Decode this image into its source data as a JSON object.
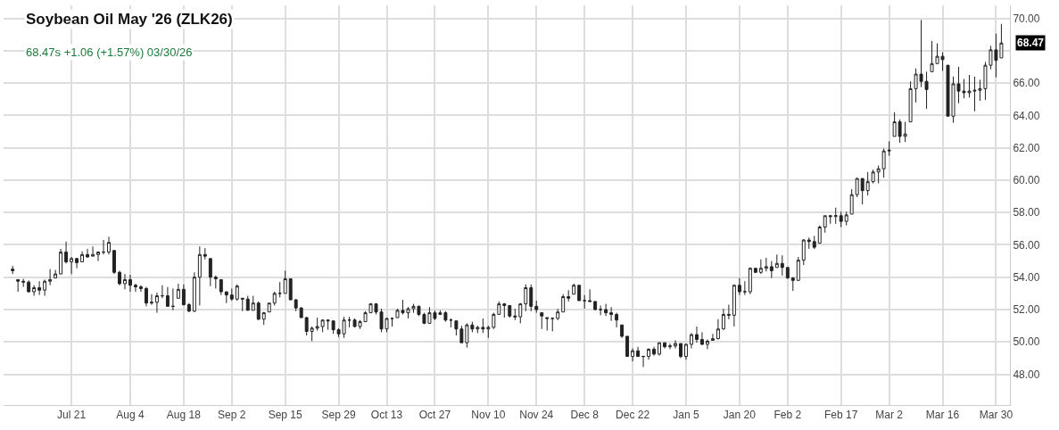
{
  "chart_data": {
    "type": "candlestick",
    "title": "Soybean Oil May '26 (ZLK26)",
    "subtitle": "68.47s +1.06 (+1.57%) 03/30/26",
    "categories": [
      null,
      null,
      null,
      null,
      null,
      null,
      null,
      null,
      null,
      null,
      null,
      "Jul 21",
      null,
      null,
      null,
      null,
      null,
      null,
      null,
      null,
      null,
      null,
      "Aug 4",
      null,
      null,
      null,
      null,
      null,
      null,
      null,
      null,
      null,
      "Aug 18",
      null,
      null,
      null,
      null,
      null,
      null,
      null,
      null,
      "Sep 2",
      null,
      null,
      null,
      null,
      null,
      null,
      null,
      null,
      null,
      "Sep 15",
      null,
      null,
      null,
      null,
      null,
      null,
      null,
      null,
      null,
      "Sep 29",
      null,
      null,
      null,
      null,
      null,
      null,
      null,
      null,
      "Oct 13",
      null,
      null,
      null,
      null,
      null,
      null,
      null,
      null,
      "Oct 27",
      null,
      null,
      null,
      null,
      null,
      null,
      null,
      null,
      null,
      "Nov 10",
      null,
      null,
      null,
      null,
      null,
      null,
      null,
      null,
      "Nov 24",
      null,
      null,
      null,
      null,
      null,
      null,
      null,
      null,
      "Dec 8",
      null,
      null,
      null,
      null,
      null,
      null,
      null,
      null,
      "Dec 22",
      null,
      null,
      null,
      null,
      null,
      null,
      null,
      null,
      null,
      "Jan 5",
      null,
      null,
      null,
      null,
      null,
      null,
      null,
      null,
      null,
      "Jan 20",
      null,
      null,
      null,
      null,
      null,
      null,
      null,
      null,
      "Feb 2",
      null,
      null,
      null,
      null,
      null,
      null,
      null,
      null,
      null,
      "Feb 17",
      null,
      null,
      null,
      null,
      null,
      null,
      null,
      null,
      "Mar 2",
      null,
      null,
      null,
      null,
      null,
      null,
      null,
      null,
      null,
      "Mar 16",
      null,
      null,
      null,
      null,
      null,
      null,
      null,
      null,
      null,
      "Mar 30",
      null
    ],
    "ohlc": [
      [
        54.5,
        54.7,
        54.2,
        54.4
      ],
      [
        53.85,
        53.85,
        53.1,
        53.75
      ],
      [
        53.75,
        53.9,
        53.4,
        53.7
      ],
      [
        53.7,
        53.8,
        53.05,
        53.1
      ],
      [
        53.1,
        53.5,
        52.85,
        53.35
      ],
      [
        53.35,
        53.75,
        52.9,
        53.2
      ],
      [
        53.2,
        53.85,
        52.85,
        53.75
      ],
      [
        53.75,
        54.5,
        53.5,
        53.85
      ],
      [
        53.95,
        54.45,
        53.95,
        54.2
      ],
      [
        54.2,
        55.75,
        54.2,
        55.55
      ],
      [
        55.55,
        56.2,
        54.85,
        54.95
      ],
      [
        54.95,
        55.25,
        54.2,
        55.15
      ],
      [
        55.15,
        55.2,
        54.55,
        54.9
      ],
      [
        54.95,
        55.6,
        54.95,
        55.4
      ],
      [
        55.4,
        55.75,
        55.2,
        55.25
      ],
      [
        55.3,
        55.9,
        55.3,
        55.4
      ],
      [
        55.4,
        55.6,
        55.0,
        55.55
      ],
      [
        55.55,
        56.3,
        55.4,
        55.55
      ],
      [
        55.55,
        56.5,
        55.4,
        56.15
      ],
      [
        55.65,
        55.65,
        54.2,
        54.3
      ],
      [
        54.3,
        54.4,
        53.5,
        53.6
      ],
      [
        53.6,
        54.2,
        53.25,
        53.85
      ],
      [
        53.85,
        54.15,
        53.1,
        53.5
      ],
      [
        53.5,
        53.6,
        53.1,
        53.4
      ],
      [
        53.4,
        53.5,
        53.1,
        53.3
      ],
      [
        53.3,
        53.4,
        52.2,
        52.4
      ],
      [
        52.4,
        52.95,
        52.3,
        52.45
      ],
      [
        52.45,
        53.05,
        51.8,
        52.85
      ],
      [
        52.85,
        53.5,
        52.7,
        52.85
      ],
      [
        52.85,
        53.4,
        52.2,
        52.2
      ],
      [
        52.2,
        53.3,
        51.95,
        52.2
      ],
      [
        52.7,
        53.6,
        52.7,
        53.25
      ],
      [
        53.25,
        53.55,
        52.25,
        52.3
      ],
      [
        52.3,
        52.4,
        51.85,
        51.9
      ],
      [
        51.9,
        54.3,
        51.85,
        54.0
      ],
      [
        54.0,
        55.9,
        52.25,
        55.4
      ],
      [
        55.4,
        55.8,
        55.1,
        55.3
      ],
      [
        55.15,
        55.15,
        53.45,
        54.0
      ],
      [
        54.0,
        54.1,
        53.3,
        53.9
      ],
      [
        53.85,
        53.85,
        52.9,
        53.1
      ],
      [
        53.1,
        53.1,
        52.4,
        52.9
      ],
      [
        52.9,
        53.3,
        52.55,
        52.65
      ],
      [
        52.65,
        53.55,
        52.55,
        53.45
      ],
      [
        52.7,
        52.7,
        51.9,
        52.65
      ],
      [
        52.65,
        52.85,
        51.95,
        51.95
      ],
      [
        51.95,
        52.85,
        51.95,
        52.4
      ],
      [
        52.4,
        52.5,
        51.35,
        51.4
      ],
      [
        51.4,
        51.85,
        51.05,
        51.8
      ],
      [
        51.85,
        52.4,
        51.85,
        52.4
      ],
      [
        52.4,
        53.1,
        52.25,
        53.0
      ],
      [
        53.0,
        53.7,
        52.75,
        53.0
      ],
      [
        53.0,
        54.4,
        53.0,
        53.9
      ],
      [
        53.9,
        53.9,
        52.6,
        52.6
      ],
      [
        52.6,
        52.65,
        51.9,
        52.1
      ],
      [
        52.1,
        52.15,
        51.5,
        51.5
      ],
      [
        51.5,
        51.55,
        50.4,
        50.65
      ],
      [
        50.65,
        50.95,
        50.05,
        50.85
      ],
      [
        50.85,
        51.5,
        50.7,
        50.95
      ],
      [
        50.95,
        51.4,
        50.6,
        51.35
      ],
      [
        51.35,
        51.4,
        50.75,
        51.3
      ],
      [
        51.3,
        51.3,
        50.5,
        50.75
      ],
      [
        50.75,
        50.85,
        50.3,
        50.5
      ],
      [
        50.5,
        51.55,
        50.25,
        51.35
      ],
      [
        51.35,
        51.55,
        50.9,
        51.35
      ],
      [
        51.35,
        51.45,
        50.9,
        50.95
      ],
      [
        50.95,
        51.35,
        50.8,
        51.25
      ],
      [
        51.25,
        51.9,
        51.25,
        51.8
      ],
      [
        51.8,
        52.4,
        51.8,
        52.35
      ],
      [
        52.35,
        52.4,
        51.7,
        51.85
      ],
      [
        51.85,
        52.05,
        50.6,
        50.8
      ],
      [
        50.8,
        51.5,
        50.6,
        51.45
      ],
      [
        51.45,
        51.5,
        50.95,
        51.45
      ],
      [
        51.5,
        52.05,
        51.5,
        51.95
      ],
      [
        51.95,
        52.6,
        51.7,
        51.8
      ],
      [
        51.8,
        52.15,
        51.45,
        52.05
      ],
      [
        52.05,
        52.35,
        51.8,
        52.2
      ],
      [
        52.2,
        52.25,
        51.6,
        51.7
      ],
      [
        51.7,
        51.8,
        51.1,
        51.15
      ],
      [
        51.15,
        52.15,
        51.15,
        51.8
      ],
      [
        51.8,
        51.95,
        51.35,
        51.45
      ],
      [
        51.7,
        51.95,
        51.7,
        51.8
      ],
      [
        51.8,
        51.9,
        51.25,
        51.35
      ],
      [
        51.35,
        51.45,
        50.9,
        51.35
      ],
      [
        51.3,
        51.3,
        50.4,
        50.8
      ],
      [
        50.8,
        51.0,
        49.95,
        49.95
      ],
      [
        49.95,
        51.15,
        49.65,
        51.05
      ],
      [
        51.05,
        51.25,
        50.6,
        50.8
      ],
      [
        50.8,
        51.0,
        50.55,
        50.9
      ],
      [
        50.9,
        51.45,
        50.55,
        50.8
      ],
      [
        50.8,
        51.0,
        50.25,
        50.9
      ],
      [
        50.9,
        51.8,
        50.8,
        51.7
      ],
      [
        51.7,
        52.5,
        51.7,
        52.35
      ],
      [
        52.35,
        52.4,
        51.5,
        52.25
      ],
      [
        52.25,
        52.25,
        51.5,
        51.6
      ],
      [
        51.6,
        52.05,
        51.35,
        51.55
      ],
      [
        51.55,
        52.4,
        51.15,
        52.35
      ],
      [
        52.35,
        53.55,
        51.9,
        53.35
      ],
      [
        53.35,
        53.55,
        51.9,
        52.2
      ],
      [
        52.2,
        52.55,
        51.8,
        52.0
      ],
      [
        51.8,
        51.8,
        50.8,
        51.6
      ],
      [
        51.5,
        51.5,
        50.7,
        51.45
      ],
      [
        51.45,
        51.5,
        50.65,
        51.45
      ],
      [
        51.45,
        52.05,
        51.35,
        51.85
      ],
      [
        51.85,
        52.95,
        51.85,
        52.8
      ],
      [
        52.8,
        53.2,
        52.5,
        52.7
      ],
      [
        52.95,
        53.6,
        52.95,
        53.5
      ],
      [
        53.5,
        53.5,
        52.55,
        52.55
      ],
      [
        52.55,
        52.9,
        52.05,
        52.55
      ],
      [
        52.55,
        53.25,
        52.5,
        52.5
      ],
      [
        52.5,
        52.5,
        51.95,
        52.0
      ],
      [
        52.0,
        52.25,
        51.65,
        52.0
      ],
      [
        52.0,
        52.35,
        51.6,
        51.8
      ],
      [
        51.8,
        52.15,
        51.3,
        51.7
      ],
      [
        51.7,
        51.8,
        50.9,
        51.35
      ],
      [
        51.05,
        51.05,
        50.25,
        50.35
      ],
      [
        50.35,
        50.35,
        49.1,
        49.1
      ],
      [
        49.1,
        49.6,
        48.8,
        49.45
      ],
      [
        49.45,
        49.7,
        49.1,
        49.1
      ],
      [
        49.1,
        49.15,
        48.45,
        49.1
      ],
      [
        49.1,
        49.6,
        48.9,
        49.55
      ],
      [
        49.55,
        49.7,
        49.15,
        49.25
      ],
      [
        49.25,
        49.95,
        49.15,
        49.95
      ],
      [
        49.95,
        49.95,
        49.6,
        49.7
      ],
      [
        49.7,
        49.9,
        49.55,
        49.75
      ],
      [
        49.75,
        50.1,
        49.6,
        49.9
      ],
      [
        49.9,
        49.9,
        49.0,
        49.1
      ],
      [
        49.1,
        49.9,
        48.9,
        49.85
      ],
      [
        49.85,
        50.55,
        49.6,
        50.45
      ],
      [
        50.45,
        50.95,
        49.95,
        50.15
      ],
      [
        50.15,
        50.6,
        49.8,
        49.85
      ],
      [
        49.85,
        50.15,
        49.55,
        50.05
      ],
      [
        50.1,
        50.5,
        50.1,
        50.2
      ],
      [
        50.2,
        51.4,
        50.15,
        50.8
      ],
      [
        50.8,
        52.05,
        50.75,
        51.7
      ],
      [
        51.7,
        52.3,
        51.4,
        51.65
      ],
      [
        51.65,
        53.55,
        50.95,
        53.5
      ],
      [
        53.5,
        53.95,
        52.9,
        53.1
      ],
      [
        53.1,
        53.75,
        52.9,
        53.1
      ],
      [
        53.1,
        54.6,
        52.95,
        54.55
      ],
      [
        54.55,
        54.55,
        54.25,
        54.3
      ],
      [
        54.3,
        55.1,
        54.2,
        54.55
      ],
      [
        54.55,
        55.2,
        54.35,
        54.65
      ],
      [
        54.65,
        55.0,
        53.95,
        54.4
      ],
      [
        54.6,
        55.4,
        54.6,
        54.85
      ],
      [
        54.85,
        55.35,
        54.1,
        54.6
      ],
      [
        54.6,
        54.6,
        53.9,
        53.95
      ],
      [
        53.95,
        54.0,
        53.15,
        53.8
      ],
      [
        53.8,
        55.25,
        53.8,
        55.05
      ],
      [
        55.05,
        56.35,
        54.75,
        56.3
      ],
      [
        56.3,
        56.45,
        55.75,
        56.2
      ],
      [
        56.2,
        56.55,
        55.75,
        55.85
      ],
      [
        56.1,
        57.2,
        56.1,
        57.1
      ],
      [
        57.1,
        57.8,
        56.75,
        57.8
      ],
      [
        57.8,
        57.85,
        57.3,
        57.75
      ],
      [
        57.75,
        58.3,
        57.3,
        57.8
      ],
      [
        57.8,
        58.05,
        57.1,
        57.45
      ],
      [
        57.45,
        58.05,
        57.2,
        57.85
      ],
      [
        57.9,
        59.45,
        57.9,
        59.1
      ],
      [
        59.1,
        60.15,
        58.95,
        60.1
      ],
      [
        60.1,
        60.1,
        58.5,
        59.35
      ],
      [
        59.35,
        60.5,
        59.05,
        59.9
      ],
      [
        59.9,
        60.65,
        59.8,
        60.5
      ],
      [
        60.5,
        60.9,
        59.8,
        60.7
      ],
      [
        60.7,
        61.95,
        60.15,
        61.8
      ],
      [
        61.8,
        62.4,
        61.5,
        61.85
      ],
      [
        62.7,
        64.2,
        62.7,
        63.6
      ],
      [
        63.6,
        63.75,
        62.3,
        62.7
      ],
      [
        62.7,
        63.6,
        62.35,
        62.85
      ],
      [
        63.6,
        66.1,
        63.6,
        65.65
      ],
      [
        65.65,
        66.9,
        64.8,
        66.55
      ],
      [
        66.55,
        69.9,
        65.75,
        66.1
      ],
      [
        66.1,
        66.7,
        64.4,
        65.6
      ],
      [
        66.7,
        68.6,
        66.7,
        67.2
      ],
      [
        67.2,
        68.45,
        67.2,
        67.65
      ],
      [
        67.65,
        67.9,
        66.75,
        67.45
      ],
      [
        67.1,
        67.1,
        63.95,
        63.95
      ],
      [
        63.95,
        66.4,
        63.55,
        65.95
      ],
      [
        65.95,
        67.0,
        64.75,
        65.5
      ],
      [
        65.5,
        66.25,
        65.05,
        65.4
      ],
      [
        65.4,
        66.5,
        65.1,
        65.5
      ],
      [
        65.5,
        66.4,
        64.25,
        65.55
      ],
      [
        65.55,
        66.2,
        64.9,
        65.65
      ],
      [
        65.65,
        67.3,
        64.95,
        67.1
      ],
      [
        67.1,
        68.3,
        66.85,
        68.05
      ],
      [
        68.05,
        69.05,
        66.35,
        67.4
      ],
      [
        67.55,
        69.65,
        67.55,
        68.47
      ]
    ],
    "color": "#222222",
    "ylim": [
      46.1,
      70.8
    ],
    "yticks": [
      {
        "value": 48,
        "label": "48.00"
      },
      {
        "value": 50,
        "label": "50.00"
      },
      {
        "value": 52,
        "label": "52.00"
      },
      {
        "value": 54,
        "label": "54.00"
      },
      {
        "value": 56,
        "label": "56.00"
      },
      {
        "value": 58,
        "label": "58.00"
      },
      {
        "value": 60,
        "label": "60.00"
      },
      {
        "value": 62,
        "label": "62.00"
      },
      {
        "value": 64,
        "label": "64.00"
      },
      {
        "value": 66,
        "label": "66.00"
      },
      {
        "value": 68,
        "label": null
      },
      {
        "value": 70,
        "label": "70.00"
      }
    ],
    "annotations": [
      "68.47"
    ],
    "grid": true
  }
}
